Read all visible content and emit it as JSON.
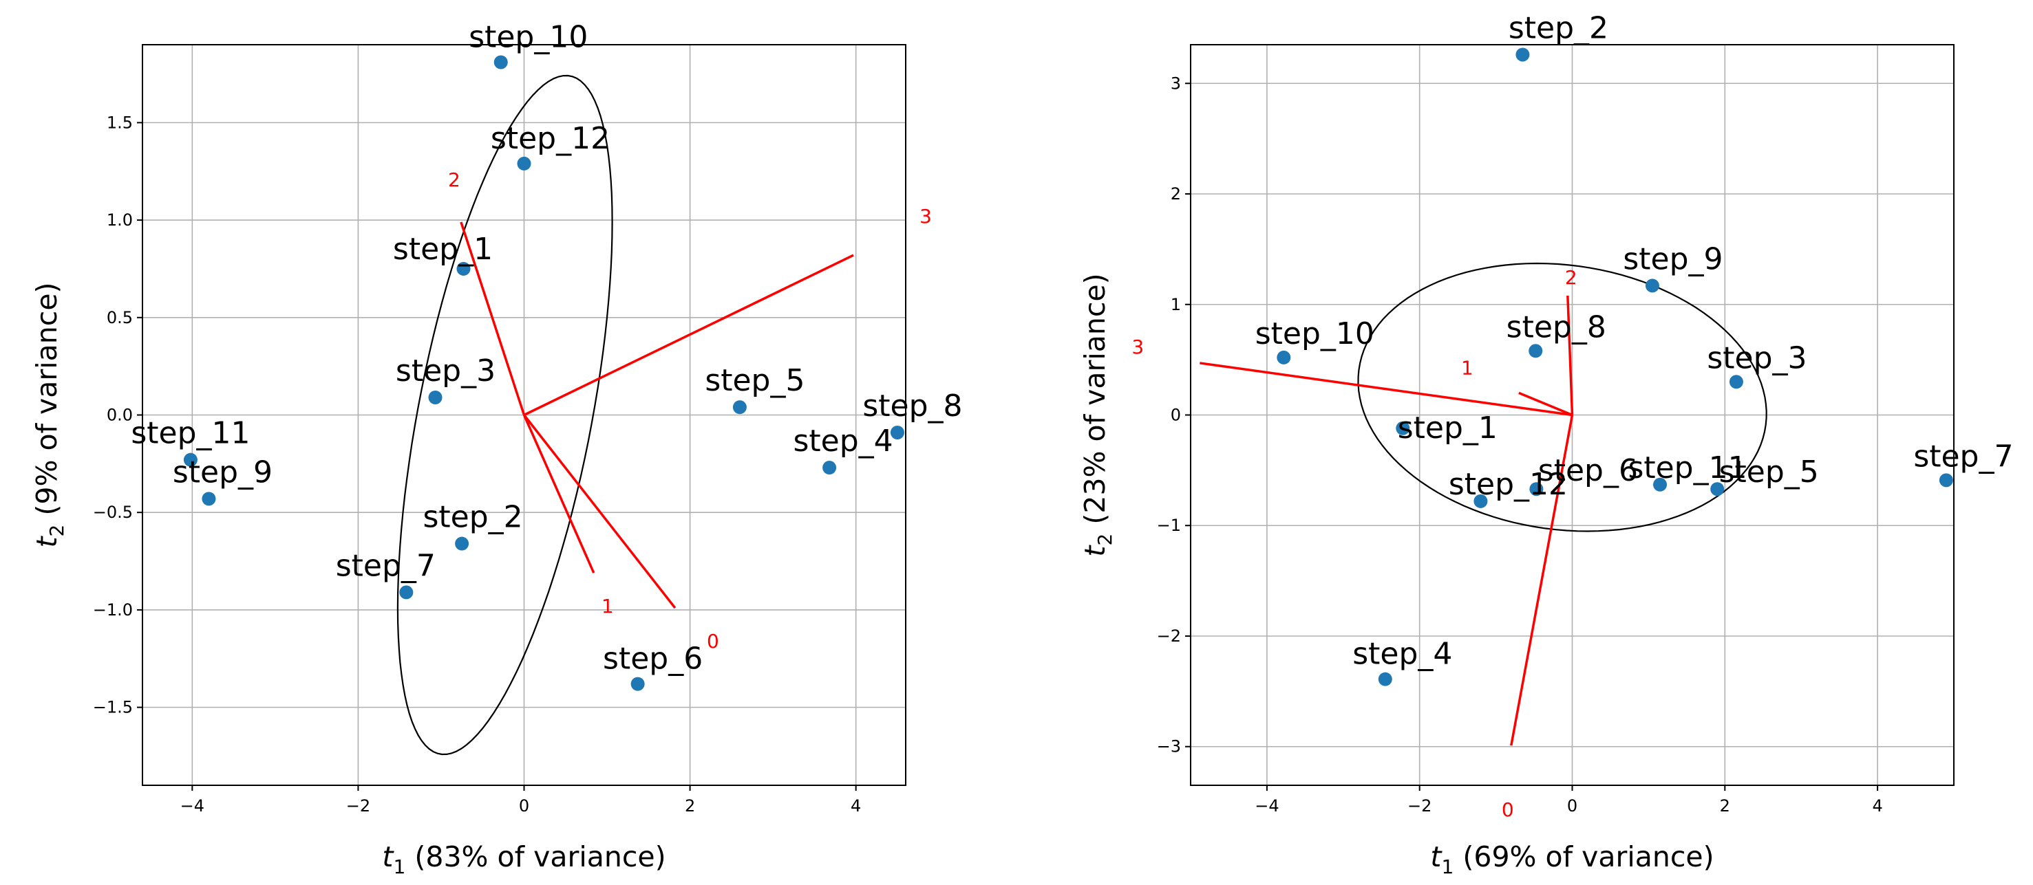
{
  "chart_data": [
    {
      "type": "scatter",
      "xlabel_symbol": "t",
      "xlabel_sub": "1",
      "xlabel_rest": " (83% of variance)",
      "ylabel_symbol": "t",
      "ylabel_sub": "2",
      "ylabel_rest": " (9% of variance)",
      "xlim": [
        -4.6,
        4.6
      ],
      "ylim": [
        -1.9,
        1.9
      ],
      "xticks": [
        -4,
        -2,
        0,
        2,
        4
      ],
      "yticks": [
        -1.5,
        -1.0,
        -0.5,
        0.0,
        0.5,
        1.0,
        1.5
      ],
      "xtick_labels": [
        "−4",
        "−2",
        "0",
        "2",
        "4"
      ],
      "ytick_labels": [
        "−1.5",
        "−1.0",
        "−0.5",
        "0.0",
        "0.5",
        "1.0",
        "1.5"
      ],
      "grid": true,
      "points": [
        {
          "label": "step_10",
          "x": -0.28,
          "y": 1.81
        },
        {
          "label": "step_12",
          "x": 0.0,
          "y": 1.29
        },
        {
          "label": "step_1",
          "x": -0.73,
          "y": 0.75
        },
        {
          "label": "step_3",
          "x": -1.07,
          "y": 0.09
        },
        {
          "label": "step_5",
          "x": 2.6,
          "y": 0.04
        },
        {
          "label": "step_8",
          "x": 4.5,
          "y": -0.09
        },
        {
          "label": "step_4",
          "x": 3.68,
          "y": -0.27
        },
        {
          "label": "step_11",
          "x": -4.02,
          "y": -0.23
        },
        {
          "label": "step_9",
          "x": -3.8,
          "y": -0.43
        },
        {
          "label": "step_2",
          "x": -0.75,
          "y": -0.66
        },
        {
          "label": "step_7",
          "x": -1.42,
          "y": -0.91
        },
        {
          "label": "step_6",
          "x": 1.37,
          "y": -1.38
        }
      ],
      "loadings": [
        {
          "label": "0",
          "x": 1.82,
          "y": -0.99
        },
        {
          "label": "1",
          "x": 0.84,
          "y": -0.81
        },
        {
          "label": "2",
          "x": -0.76,
          "y": 0.99
        },
        {
          "label": "3",
          "x": 3.97,
          "y": 0.82
        }
      ],
      "ellipse": {
        "cx": -0.23,
        "cy": 0.0,
        "rx": 0.95,
        "ry": 1.95,
        "angle_deg": 149
      }
    },
    {
      "type": "scatter",
      "xlabel_symbol": "t",
      "xlabel_sub": "1",
      "xlabel_rest": " (69% of variance)",
      "ylabel_symbol": "t",
      "ylabel_sub": "2",
      "ylabel_rest": " (23% of variance)",
      "xlim": [
        -5.0,
        5.0
      ],
      "ylim": [
        -3.35,
        3.35
      ],
      "xticks": [
        -4,
        -2,
        0,
        2,
        4
      ],
      "yticks": [
        -3,
        -2,
        -1,
        0,
        1,
        2,
        3
      ],
      "xtick_labels": [
        "−4",
        "−2",
        "0",
        "2",
        "4"
      ],
      "ytick_labels": [
        "−3",
        "−2",
        "−1",
        "0",
        "1",
        "2",
        "3"
      ],
      "grid": true,
      "points": [
        {
          "label": "step_2",
          "x": -0.65,
          "y": 3.26
        },
        {
          "label": "step_9",
          "x": 1.05,
          "y": 1.17
        },
        {
          "label": "step_10",
          "x": -3.78,
          "y": 0.52
        },
        {
          "label": "step_8",
          "x": -0.48,
          "y": 0.58
        },
        {
          "label": "step_3",
          "x": 2.15,
          "y": 0.3
        },
        {
          "label": "step_1",
          "x": -2.22,
          "y": -0.12
        },
        {
          "label": "step_6",
          "x": -0.47,
          "y": -0.67
        },
        {
          "label": "step_12",
          "x": -1.2,
          "y": -0.78
        },
        {
          "label": "step_11",
          "x": 1.15,
          "y": -0.63
        },
        {
          "label": "step_5",
          "x": 1.9,
          "y": -0.67
        },
        {
          "label": "step_7",
          "x": 4.9,
          "y": -0.59
        },
        {
          "label": "step_4",
          "x": -2.45,
          "y": -2.39
        }
      ],
      "loadings": [
        {
          "label": "0",
          "x": -0.8,
          "y": -2.99
        },
        {
          "label": "1",
          "x": -0.7,
          "y": 0.2
        },
        {
          "label": "2",
          "x": -0.06,
          "y": 1.08
        },
        {
          "label": "3",
          "x": -4.88,
          "y": 0.47
        }
      ],
      "ellipse": {
        "cx": -0.13,
        "cy": 0.16,
        "rx": 2.68,
        "ry": 1.2,
        "angle_deg": -4
      }
    }
  ]
}
